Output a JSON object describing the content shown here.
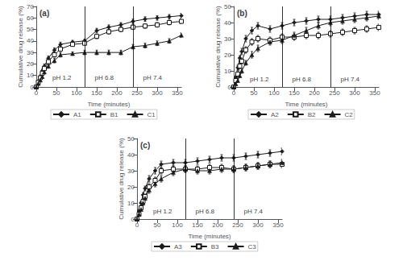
{
  "chart_data": [
    {
      "type": "line",
      "title": "(a)",
      "x": [
        0,
        5,
        10,
        15,
        20,
        30,
        45,
        60,
        90,
        120,
        150,
        180,
        210,
        240,
        270,
        300,
        330,
        360
      ],
      "series": [
        {
          "name": "A1",
          "color": "#1a1a1a",
          "marker": "diamond",
          "values": [
            0,
            5,
            9,
            14,
            18,
            25,
            32,
            37,
            39,
            40,
            49,
            52,
            54,
            57,
            59,
            60,
            61,
            62
          ],
          "errors": [
            0,
            1,
            1.5,
            1.5,
            2,
            2,
            2,
            2,
            1.5,
            1.5,
            2,
            2,
            2,
            2,
            2,
            2,
            2,
            2
          ]
        },
        {
          "name": "B1",
          "color": "#1a1a1a",
          "marker": "open_square",
          "values": [
            0,
            4,
            8,
            12,
            16,
            22,
            28,
            33,
            37,
            38,
            44,
            48,
            50,
            52,
            53,
            54,
            56,
            57
          ],
          "errors": [
            0,
            1,
            1.5,
            1.5,
            1.5,
            2,
            2,
            2,
            1.5,
            1.5,
            2,
            2,
            2,
            2,
            2,
            2,
            2,
            2
          ]
        },
        {
          "name": "C1",
          "color": "#1a1a1a",
          "marker": "triangle",
          "values": [
            0,
            3,
            6,
            9,
            13,
            18,
            23,
            28,
            29,
            30,
            30,
            30,
            30,
            35,
            36,
            38,
            40,
            45
          ],
          "errors": [
            0,
            1,
            1,
            1,
            1.5,
            1.5,
            2,
            2,
            1.5,
            2,
            2,
            2,
            2,
            2,
            2,
            2,
            2,
            2
          ]
        }
      ],
      "vlines": [
        120,
        240
      ],
      "annotations": [
        {
          "text": "pH 1.2",
          "x": 40,
          "y": 5
        },
        {
          "text": "pH 6.8",
          "x": 145,
          "y": 5
        },
        {
          "text": "pH 7.4",
          "x": 265,
          "y": 5
        }
      ],
      "xlabel": "Time (minutes)",
      "ylabel": "Cumulative drug release (%)",
      "xlim": [
        0,
        360
      ],
      "xticks": [
        0,
        50,
        100,
        150,
        200,
        250,
        300,
        350
      ],
      "ylim": [
        0,
        70
      ],
      "yticks": [
        0,
        10,
        20,
        30,
        40,
        50,
        60,
        70
      ],
      "grid": false,
      "legend": "bottom"
    },
    {
      "type": "line",
      "title": "(b)",
      "x": [
        0,
        5,
        10,
        15,
        20,
        30,
        45,
        60,
        90,
        120,
        150,
        180,
        210,
        240,
        270,
        300,
        330,
        360
      ],
      "series": [
        {
          "name": "A2",
          "color": "#1a1a1a",
          "marker": "diamond",
          "values": [
            0,
            6,
            12,
            18,
            22,
            30,
            35,
            38,
            36,
            38,
            40,
            41,
            42,
            42,
            43,
            44,
            45,
            45
          ],
          "errors": [
            0,
            1,
            1.5,
            1.5,
            2,
            2,
            2,
            2,
            2,
            2,
            2,
            2,
            2,
            2,
            2,
            2,
            2,
            2
          ]
        },
        {
          "name": "B2",
          "color": "#1a1a1a",
          "marker": "open_square",
          "values": [
            0,
            4,
            8,
            13,
            16,
            23,
            28,
            30,
            29,
            31,
            31,
            32,
            32,
            33,
            34,
            35,
            36,
            37
          ],
          "errors": [
            0,
            1,
            1,
            1.5,
            1.5,
            2,
            2,
            2,
            2,
            2,
            2,
            2,
            2,
            2,
            2,
            2,
            2,
            2
          ]
        },
        {
          "name": "C2",
          "color": "#1a1a1a",
          "marker": "triangle",
          "values": [
            0,
            2,
            4,
            7,
            10,
            15,
            20,
            24,
            28,
            29,
            32,
            35,
            38,
            40,
            41,
            42,
            43,
            44
          ],
          "errors": [
            0,
            1,
            1,
            1,
            1.5,
            1.5,
            2,
            2,
            2,
            2,
            2,
            2,
            2,
            2,
            2,
            2,
            2,
            2
          ]
        }
      ],
      "vlines": [
        120,
        240
      ],
      "annotations": [
        {
          "text": "pH 1.2",
          "x": 40,
          "y": 3
        },
        {
          "text": "pH 6.8",
          "x": 145,
          "y": 3
        },
        {
          "text": "pH 7.4",
          "x": 265,
          "y": 3
        }
      ],
      "xlabel": "Time (minutes)",
      "ylabel": "Cumulative drug release (%)",
      "xlim": [
        0,
        360
      ],
      "xticks": [
        0,
        50,
        100,
        150,
        200,
        250,
        300,
        350
      ],
      "ylim": [
        0,
        50
      ],
      "yticks": [
        0,
        10,
        20,
        30,
        40,
        50
      ],
      "grid": false,
      "legend": "bottom"
    },
    {
      "type": "line",
      "title": "(c)",
      "x": [
        0,
        5,
        10,
        15,
        20,
        30,
        45,
        60,
        90,
        120,
        150,
        180,
        210,
        240,
        270,
        300,
        330,
        360
      ],
      "series": [
        {
          "name": "A3",
          "color": "#1a1a1a",
          "marker": "diamond",
          "values": [
            0,
            5,
            10,
            15,
            19,
            25,
            30,
            34,
            35,
            35,
            36,
            37,
            38,
            38,
            39,
            40,
            41,
            42
          ],
          "errors": [
            0,
            1,
            1,
            1.5,
            1.5,
            2,
            2,
            2,
            2,
            2,
            2,
            2,
            2,
            2,
            2,
            2,
            2,
            2
          ]
        },
        {
          "name": "B3",
          "color": "#1a1a1a",
          "marker": "open_square",
          "values": [
            0,
            3,
            7,
            11,
            14,
            20,
            24,
            30,
            31,
            31,
            31,
            32,
            32,
            31,
            32,
            33,
            34,
            34
          ],
          "errors": [
            0,
            1,
            1,
            1.5,
            1.5,
            2,
            2,
            2,
            2,
            2,
            2,
            2,
            2,
            2,
            2,
            2,
            2,
            2
          ]
        },
        {
          "name": "C3",
          "color": "#1a1a1a",
          "marker": "triangle",
          "values": [
            0,
            3,
            6,
            10,
            13,
            18,
            22,
            25,
            29,
            31,
            30,
            30,
            31,
            31,
            32,
            33,
            34,
            35
          ],
          "errors": [
            0,
            1,
            1,
            1.5,
            1.5,
            2,
            2,
            2,
            2,
            2,
            2,
            2,
            2,
            2,
            2,
            2,
            2,
            2
          ]
        }
      ],
      "vlines": [
        120,
        240
      ],
      "annotations": [
        {
          "text": "pH 1.2",
          "x": 40,
          "y": 3
        },
        {
          "text": "pH 6.8",
          "x": 145,
          "y": 3
        },
        {
          "text": "pH 7.4",
          "x": 265,
          "y": 3
        }
      ],
      "xlabel": "Time (minutes)",
      "ylabel": "Cumulative drug release (%)",
      "xlim": [
        0,
        360
      ],
      "xticks": [
        0,
        50,
        100,
        150,
        200,
        250,
        300,
        350
      ],
      "ylim": [
        0,
        50
      ],
      "yticks": [
        0,
        10,
        20,
        30,
        40,
        50
      ],
      "grid": false,
      "legend": "bottom"
    }
  ]
}
